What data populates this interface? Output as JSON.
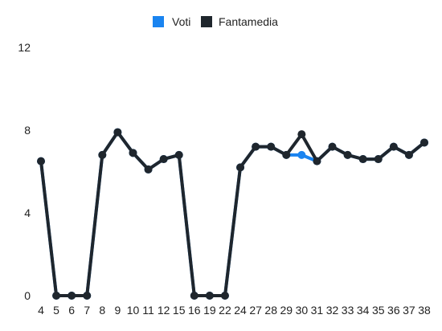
{
  "chart_data": {
    "type": "line",
    "x": [
      "4",
      "5",
      "6",
      "7",
      "8",
      "9",
      "10",
      "11",
      "12",
      "15",
      "16",
      "19",
      "22",
      "24",
      "27",
      "28",
      "29",
      "30",
      "31",
      "32",
      "33",
      "34",
      "35",
      "36",
      "37",
      "38"
    ],
    "series": [
      {
        "name": "Voti",
        "color": "#1a84f0",
        "values": [
          6.5,
          0,
          0,
          0,
          6.8,
          7.9,
          6.9,
          6.1,
          6.6,
          6.8,
          0,
          0,
          0,
          6.2,
          7.2,
          7.2,
          6.8,
          6.8,
          6.5,
          7.2,
          6.8,
          6.6,
          6.6,
          7.2,
          6.8,
          7.4
        ]
      },
      {
        "name": "Fantamedia",
        "color": "#1f262d",
        "values": [
          6.5,
          0,
          0,
          0,
          6.8,
          7.9,
          6.9,
          6.1,
          6.6,
          6.8,
          0,
          0,
          0,
          6.2,
          7.2,
          7.2,
          6.8,
          7.8,
          6.5,
          7.2,
          6.8,
          6.6,
          6.6,
          7.2,
          6.8,
          7.4
        ]
      }
    ],
    "y_ticks": [
      "0",
      "4",
      "8",
      "12"
    ],
    "ylim": [
      0,
      12
    ],
    "legend_position": "top-center",
    "grid": false
  }
}
